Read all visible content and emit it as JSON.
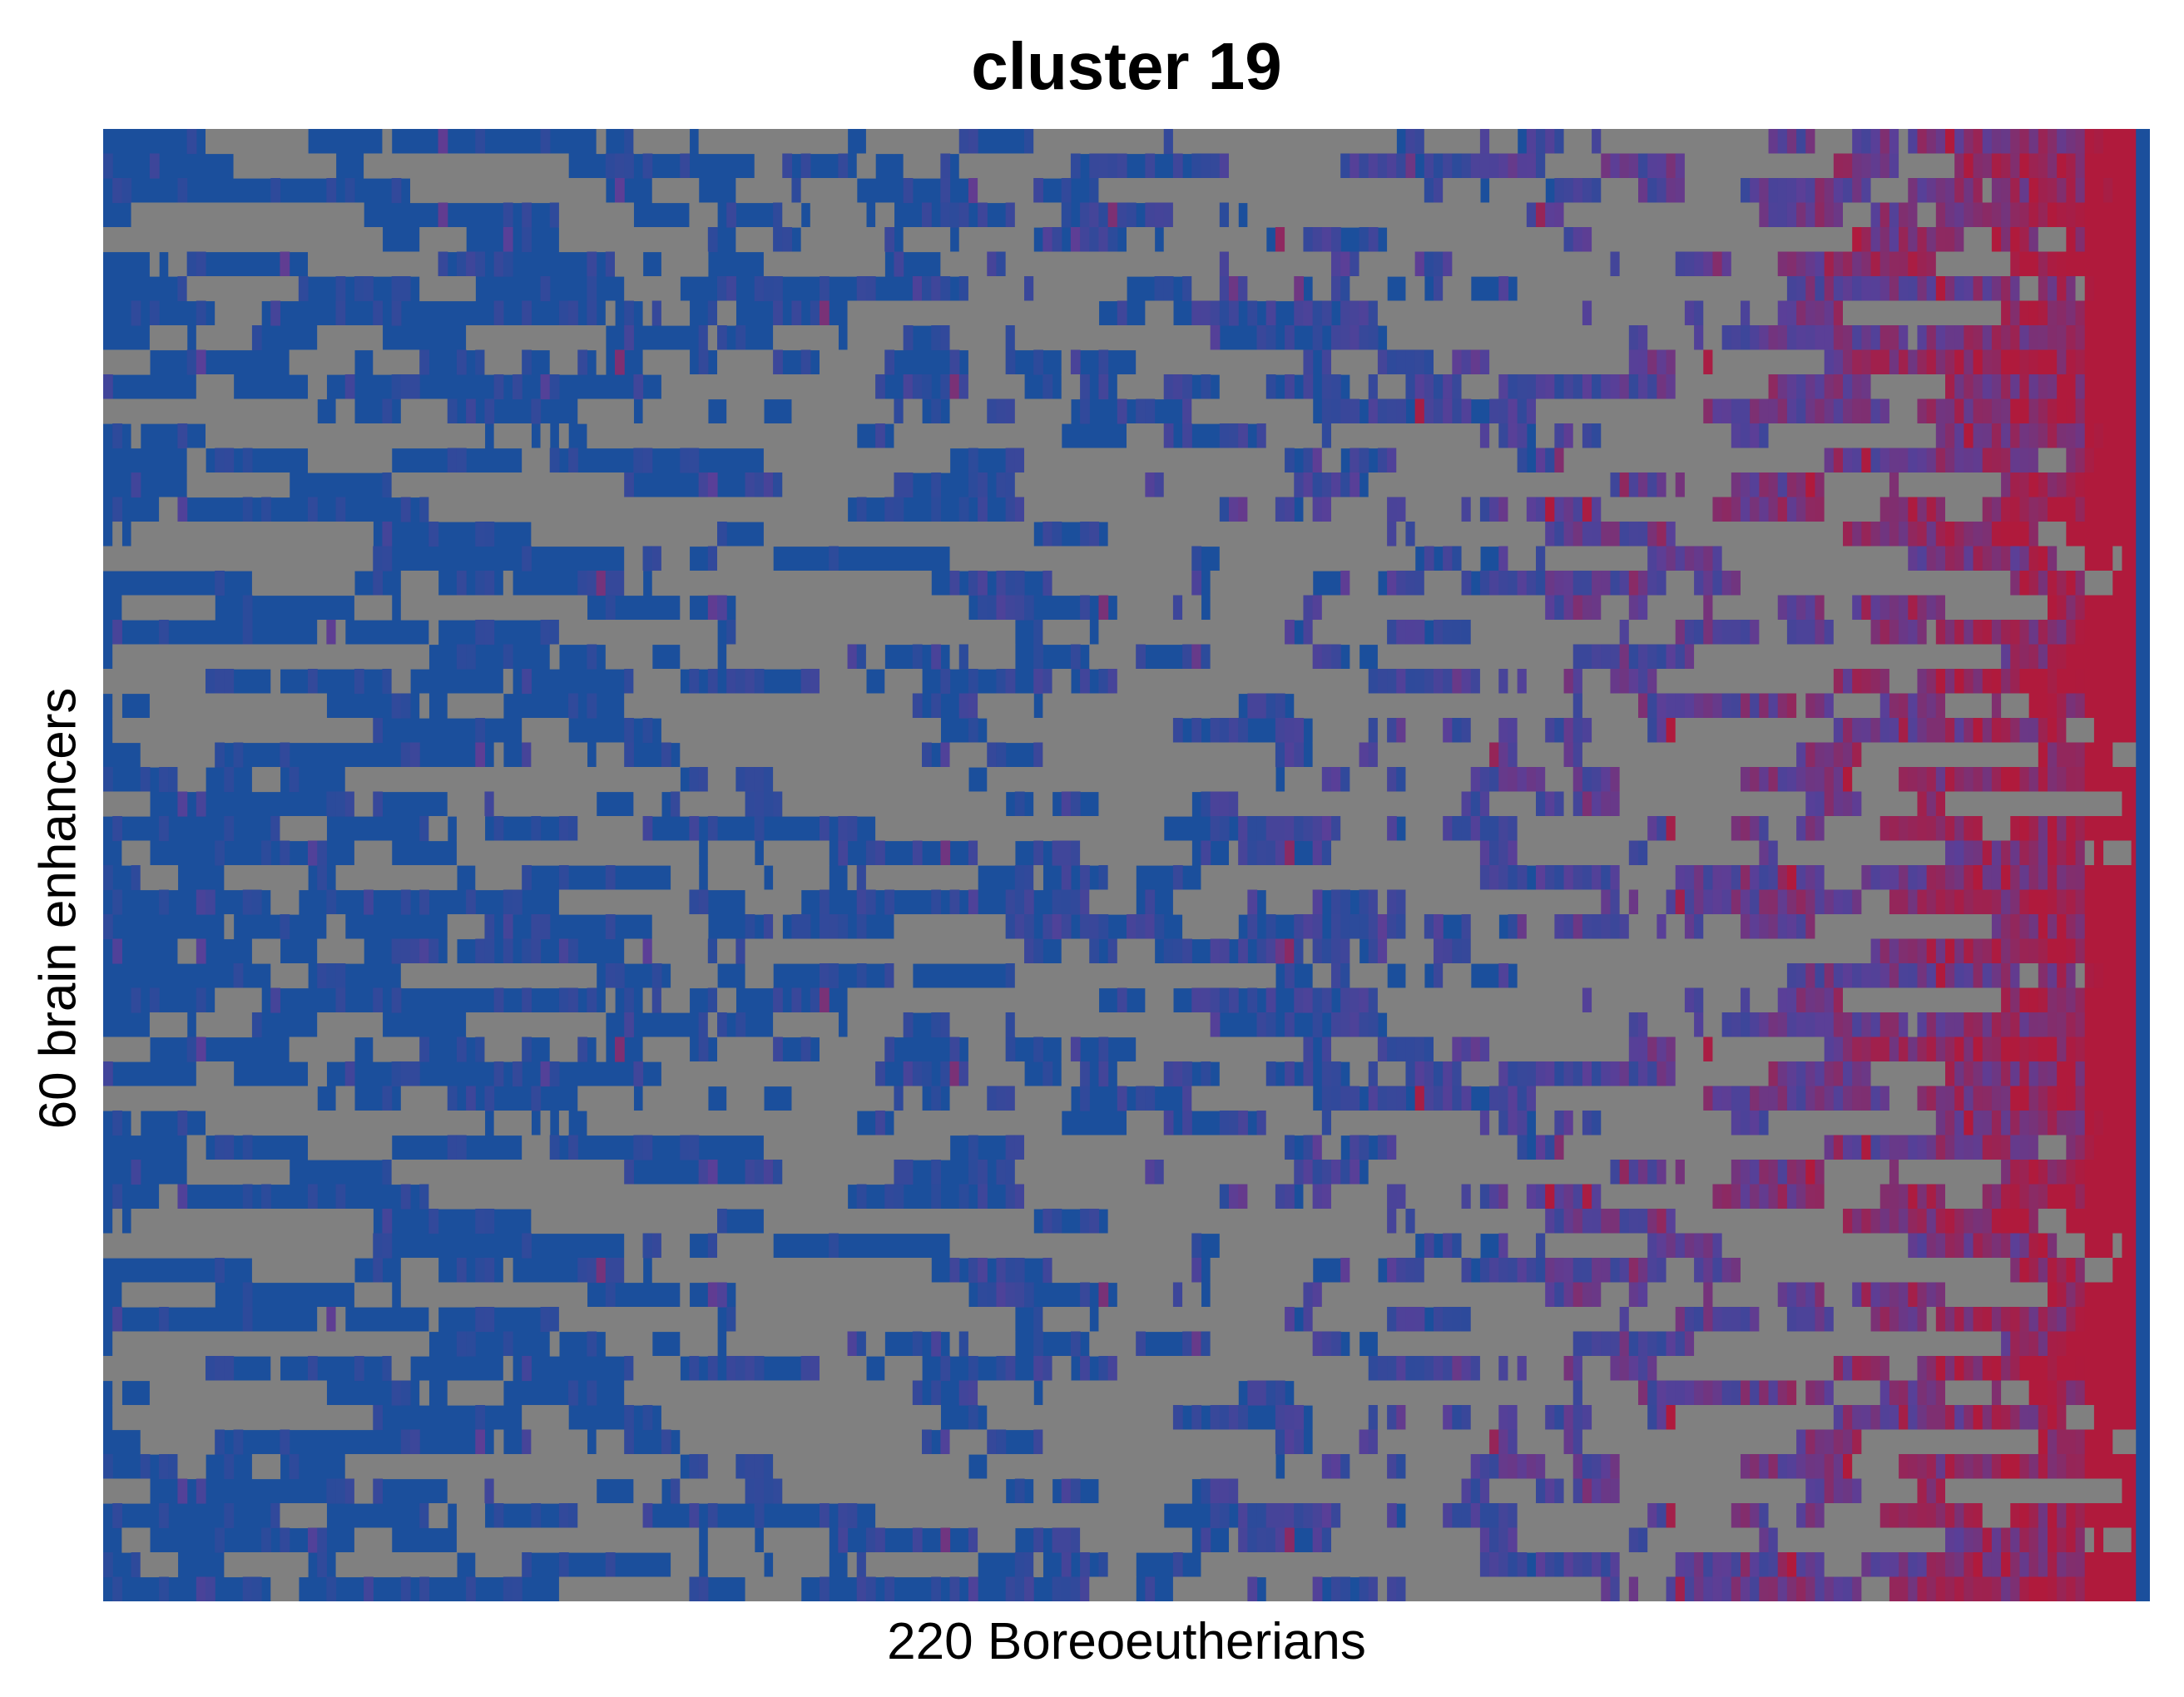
{
  "chart_data": {
    "type": "heatmap",
    "title": "cluster 19",
    "xlabel": "220 Boreoeutherians",
    "ylabel": "60 brain enhancers",
    "n_rows": 60,
    "n_cols": 220,
    "colors": {
      "low": "#1b4f9c",
      "mid": "#5a3f98",
      "high": "#b01a3c",
      "missing": "#808080"
    },
    "values": "estimated per-cell scores; generated pseudo-randomly from the visible pattern (mostly blue, grey gaps, increasing red toward the right edge)"
  }
}
